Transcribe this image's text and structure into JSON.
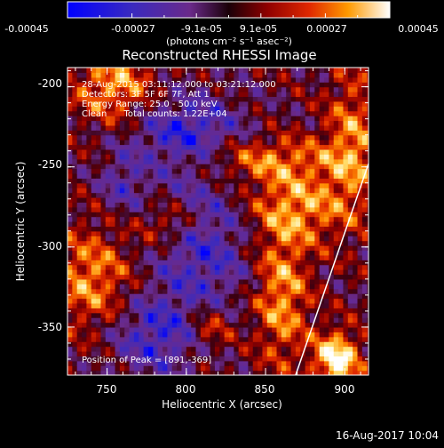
{
  "colorbar": {
    "ticks": [
      "-0.00045",
      "-0.00027",
      "-9.1e-05",
      "9.1e-05",
      "0.00027",
      "0.00045"
    ],
    "unit_label": "(photons cm⁻² s⁻¹ asec⁻²)"
  },
  "plot": {
    "title": "Reconstructed RHESSI Image",
    "info_lines": [
      "28-Aug-2015 03:11:12.000 to 03:21:12.000",
      "Detectors: 3F 5F 6F 7F, Att 1",
      "Energy Range: 25.0 - 50.0 keV",
      "Clean      Total counts: 1.22E+04"
    ],
    "peak_label": "Position of Peak = [891,-369]"
  },
  "footer": {
    "timestamp": "16-Aug-2017 10:04"
  },
  "chart_data": {
    "type": "heatmap",
    "title": "Reconstructed RHESSI Image",
    "xlabel": "Heliocentric X (arcsec)",
    "ylabel": "Heliocentric Y (arcsec)",
    "xlim": [
      725,
      915
    ],
    "ylim": [
      -380,
      -188
    ],
    "x_ticks": [
      "750",
      "800",
      "850",
      "900"
    ],
    "x_tick_values": [
      750,
      800,
      850,
      900
    ],
    "y_ticks": [
      "-200",
      "-250",
      "-300",
      "-350"
    ],
    "y_tick_values": [
      -200,
      -250,
      -300,
      -350
    ],
    "color_range": [
      -0.00045,
      0.00045
    ],
    "peak": [
      891,
      -369
    ],
    "limb_line": [
      [
        869,
        -380
      ],
      [
        915,
        -248
      ]
    ],
    "colors": {
      "background": "#000000",
      "limb": "#ffffff",
      "colormap": [
        "#0000ff",
        "#3a2abf",
        "#5a2aa0",
        "#6a2a8a",
        "#3b0010",
        "#8f0000",
        "#e02800",
        "#ff8c00",
        "#ffe070",
        "#ffffff"
      ]
    }
  }
}
